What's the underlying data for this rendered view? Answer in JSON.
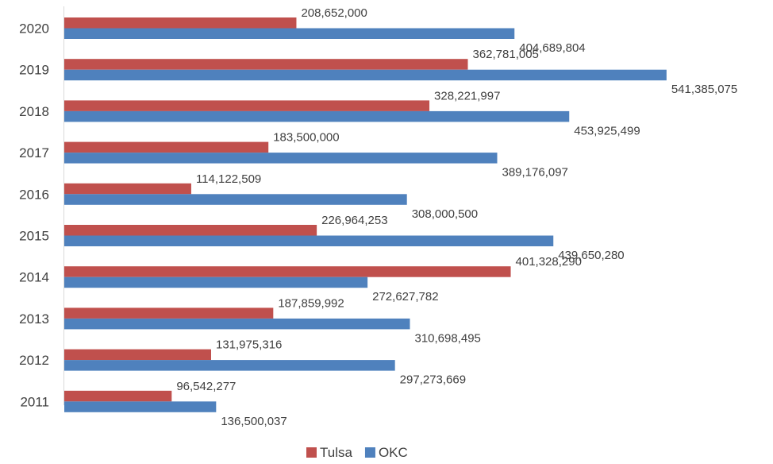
{
  "chart_data": {
    "type": "bar",
    "orientation": "horizontal",
    "title": "",
    "xlabel": "",
    "ylabel": "",
    "categories": [
      "2020",
      "2019",
      "2018",
      "2017",
      "2016",
      "2015",
      "2014",
      "2013",
      "2012",
      "2011"
    ],
    "series": [
      {
        "name": "Tulsa",
        "color": "#C0504D",
        "values": [
          208652000,
          362781005,
          328221997,
          183500000,
          114122509,
          226964253,
          401328290,
          187859992,
          131975316,
          96542277
        ],
        "labels": [
          "208,652,000",
          "362,781,005",
          "328,221,997",
          "183,500,000",
          "114,122,509",
          "226,964,253",
          "401,328,290",
          "187,859,992",
          "131,975,316",
          "96,542,277"
        ]
      },
      {
        "name": "OKC",
        "color": "#4F81BD",
        "values": [
          404689804,
          541385075,
          453925499,
          389176097,
          308000500,
          439650280,
          272627782,
          310698495,
          297273669,
          136500037
        ],
        "labels": [
          "404,689,804",
          "541,385,075",
          "453,925,499",
          "389,176,097",
          "308,000,500",
          "439,650,280",
          "272,627,782",
          "310,698,495",
          "297,273,669",
          "136,500,037"
        ]
      }
    ],
    "xlim": [
      0,
      600000000
    ],
    "grid": false,
    "legend": "bottom-center"
  }
}
